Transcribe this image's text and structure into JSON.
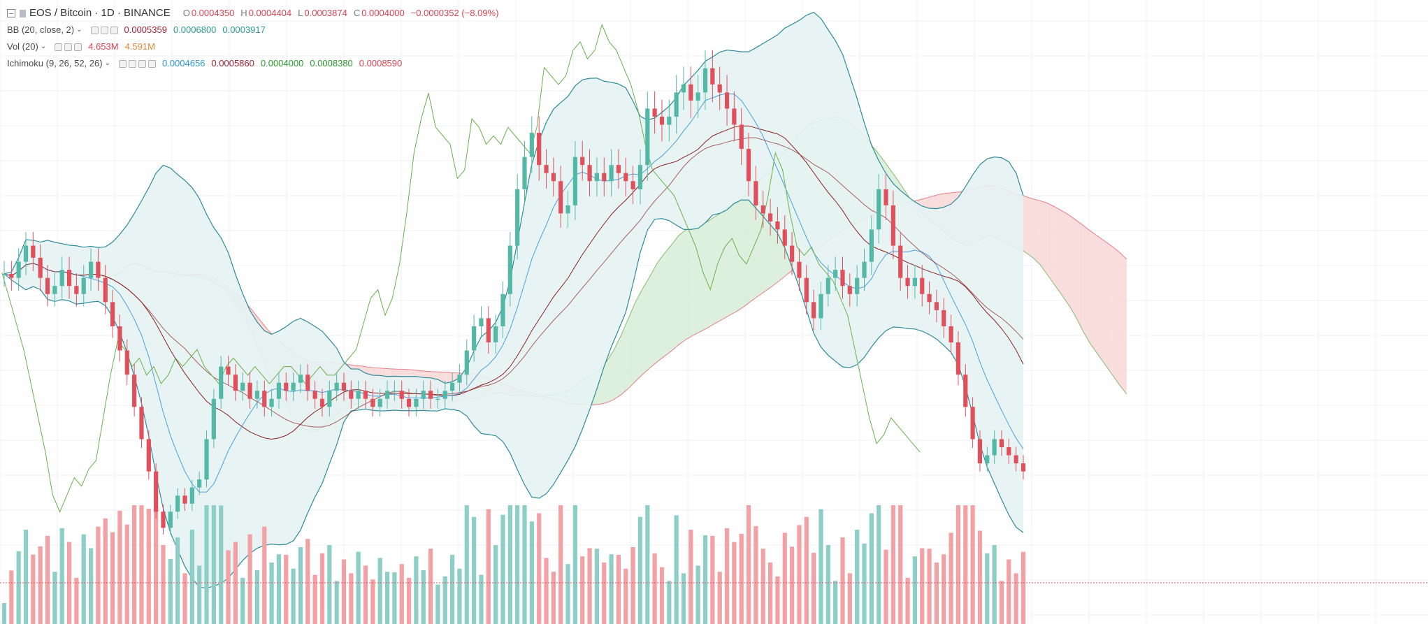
{
  "header": {
    "symbol": "EOS / Bitcoin · 1D · BINANCE",
    "open_label": "O",
    "open": "0.0004350",
    "high_label": "H",
    "high": "0.0004404",
    "low_label": "L",
    "low": "0.0003874",
    "close_label": "C",
    "close": "0.0004000",
    "change": "−0.0000352 (−8.09%)"
  },
  "indicators": {
    "bb": {
      "label": "BB (20, close, 2)",
      "values": [
        "0.0005359",
        "0.0006800",
        "0.0003917"
      ]
    },
    "vol": {
      "label": "Vol (20)",
      "values": [
        "4.653M",
        "4.591M"
      ]
    },
    "ichimoku": {
      "label": "Ichimoku (9, 26, 52, 26)",
      "values": [
        "0.0004656",
        "0.0005860",
        "0.0004000",
        "0.0008380",
        "0.0008590"
      ]
    }
  },
  "colors": {
    "up": "#53b9a6",
    "down": "#e0505c",
    "up_vol": "#8dcfc6",
    "down_vol": "#f2a1a5",
    "bb": "#2e8b9a",
    "bb_fill": "#e6f3f3",
    "tenkan": "#4a9fe0",
    "kijun": "#8b2020",
    "chikou": "#6ab04c",
    "cloud_up": "#d7ecd7",
    "cloud_down": "#f8d7d7",
    "text_red": "#d9444f",
    "text_teal": "#2a9a8f",
    "text_blue": "#2a9ad8",
    "text_dark_red": "#a02030",
    "text_green": "#2a9a2a",
    "vol_orange": "#e08a3a",
    "grid": "#eef0f4"
  },
  "chart_data": {
    "type": "candlestick",
    "symbol": "EOS / Bitcoin",
    "interval": "1D",
    "exchange": "BINANCE",
    "close": [
      0.000645,
      0.00064,
      0.00066,
      0.00068,
      0.000665,
      0.00064,
      0.00062,
      0.00063,
      0.00065,
      0.00063,
      0.00062,
      0.00064,
      0.00066,
      0.00064,
      0.00061,
      0.00058,
      0.00055,
      0.00052,
      0.00048,
      0.00044,
      0.0004,
      0.00035,
      0.00033,
      0.00035,
      0.00037,
      0.00036,
      0.00038,
      0.00039,
      0.00044,
      0.00049,
      0.00053,
      0.00052,
      0.0005,
      0.00051,
      0.00049,
      0.0005,
      0.00048,
      0.00049,
      0.00051,
      0.0005,
      0.00051,
      0.00052,
      0.0005,
      0.00049,
      0.00048,
      0.0005,
      0.00051,
      0.0005,
      0.00049,
      0.0005,
      0.00049,
      0.00048,
      0.00049,
      0.0005,
      0.0005,
      0.00049,
      0.00048,
      0.00049,
      0.0005,
      0.00049,
      0.00049,
      0.0005,
      0.00051,
      0.00052,
      0.00055,
      0.00058,
      0.00059,
      0.00056,
      0.00058,
      0.00062,
      0.00068,
      0.00075,
      0.00079,
      0.00082,
      0.00078,
      0.00077,
      0.00076,
      0.00072,
      0.00073,
      0.00079,
      0.00078,
      0.00076,
      0.00077,
      0.00076,
      0.00078,
      0.00077,
      0.00076,
      0.00075,
      0.00078,
      0.00085,
      0.00084,
      0.00083,
      0.00084,
      0.00087,
      0.00088,
      0.00086,
      0.00087,
      0.0009,
      0.00088,
      0.00087,
      0.00085,
      0.00083,
      0.0008,
      0.00076,
      0.00073,
      0.00072,
      0.00071,
      0.0007,
      0.00068,
      0.00066,
      0.00064,
      0.00061,
      0.00059,
      0.00062,
      0.00064,
      0.00065,
      0.00063,
      0.00062,
      0.00064,
      0.00066,
      0.0007,
      0.00075,
      0.00073,
      0.00068,
      0.00064,
      0.00063,
      0.00064,
      0.00062,
      0.00061,
      0.0006,
      0.00058,
      0.00056,
      0.00052,
      0.00048,
      0.00044,
      0.00041,
      0.00042,
      0.00044,
      0.00043,
      0.00042,
      0.00041,
      0.0004
    ],
    "volume_scale_note": "",
    "indicator_values": {
      "bb_basis": 0.0005359,
      "bb_upper": 0.00068,
      "bb_lower": 0.0003917,
      "vol": 4653000,
      "vol_ma": 4591000,
      "ichimoku": [
        0.0004656,
        0.000586,
        0.0004,
        0.000838,
        0.000859
      ]
    },
    "grid": true
  }
}
